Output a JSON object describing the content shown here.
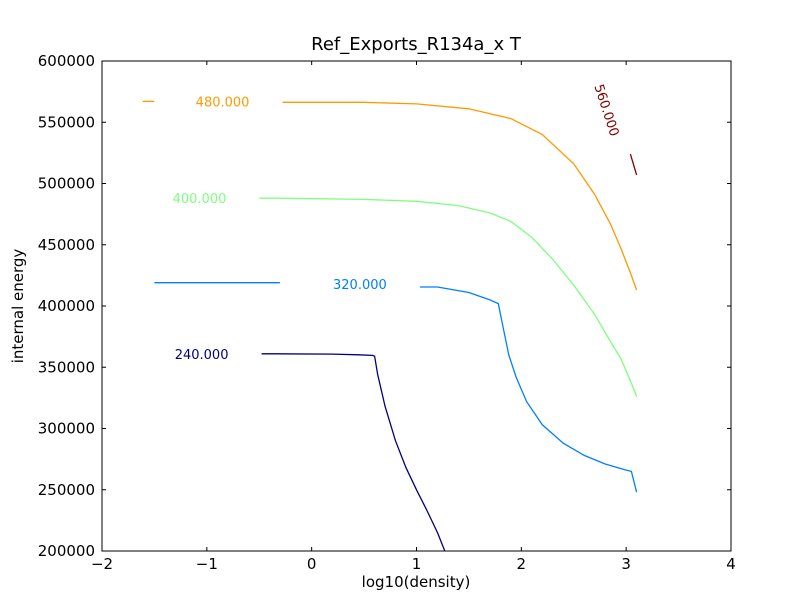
{
  "chart_data": {
    "type": "line",
    "title": "Ref_Exports_R134a_x T",
    "xlabel": "log10(density)",
    "ylabel": "internal energy",
    "xlim": [
      -2,
      4
    ],
    "ylim": [
      200000,
      600000
    ],
    "xticks": [
      "−2",
      "−1",
      "0",
      "1",
      "2",
      "3",
      "4"
    ],
    "yticks": [
      "200000",
      "250000",
      "300000",
      "350000",
      "400000",
      "450000",
      "500000",
      "550000",
      "600000"
    ],
    "grid": false,
    "legend": "none",
    "series": [
      {
        "label": "240.000",
        "color": "#00007f",
        "x": [
          -1.5,
          -1.35,
          -0.35,
          0.2,
          0.45,
          0.58,
          0.6,
          0.63,
          0.7,
          0.8,
          0.9,
          1.0,
          1.1,
          1.2,
          1.27
        ],
        "y": [
          361000,
          361000,
          361000,
          360700,
          360200,
          359700,
          359000,
          344000,
          318000,
          290000,
          268000,
          250000,
          233000,
          215000,
          200000
        ],
        "label_x": -1.05,
        "label_y": 361000,
        "label_rotation": 0
      },
      {
        "label": "320.000",
        "color": "#007fff",
        "x": [
          -1.5,
          0.0,
          0.92,
          1.2,
          1.5,
          1.7,
          1.78,
          1.82,
          1.88,
          1.95,
          2.05,
          2.2,
          2.4,
          2.6,
          2.8,
          3.0,
          3.05,
          3.1
        ],
        "y": [
          419000,
          418000,
          417000,
          415500,
          411000,
          405000,
          402000,
          385000,
          360000,
          342000,
          322000,
          303000,
          288000,
          278000,
          271000,
          266000,
          265000,
          248000
        ],
        "label_x": 0.46,
        "label_y": 418000,
        "label_rotation": 0
      },
      {
        "label": "400.000",
        "color": "#7fff7f",
        "x": [
          -1.5,
          -1.35,
          -0.35,
          0.5,
          1.0,
          1.4,
          1.7,
          1.9,
          2.1,
          2.3,
          2.5,
          2.7,
          2.85,
          2.95,
          3.05,
          3.1
        ],
        "y": [
          488000,
          488000,
          488000,
          487000,
          485500,
          482000,
          476000,
          469000,
          456000,
          438000,
          417000,
          393000,
          371000,
          357000,
          337000,
          326000
        ],
        "label_x": -1.07,
        "label_y": 488000,
        "label_rotation": 0
      },
      {
        "label": "480.000",
        "color": "#ff9900",
        "x": [
          -1.5,
          -1.35,
          -0.35,
          0.5,
          1.0,
          1.5,
          1.9,
          2.2,
          2.5,
          2.7,
          2.85,
          2.95,
          3.05,
          3.1
        ],
        "y": [
          567000,
          567000,
          567000,
          566300,
          565000,
          561000,
          553000,
          540000,
          516000,
          491000,
          467000,
          447000,
          425000,
          413000
        ],
        "label_x": -0.85,
        "label_y": 567000,
        "label_rotation": 0
      },
      {
        "label": "560.000",
        "color": "#7f0000",
        "x": [
          3.04,
          3.1
        ],
        "y": [
          524000,
          507000
        ],
        "label_x": 2.82,
        "label_y": 560000,
        "label_rotation": 72
      }
    ]
  }
}
